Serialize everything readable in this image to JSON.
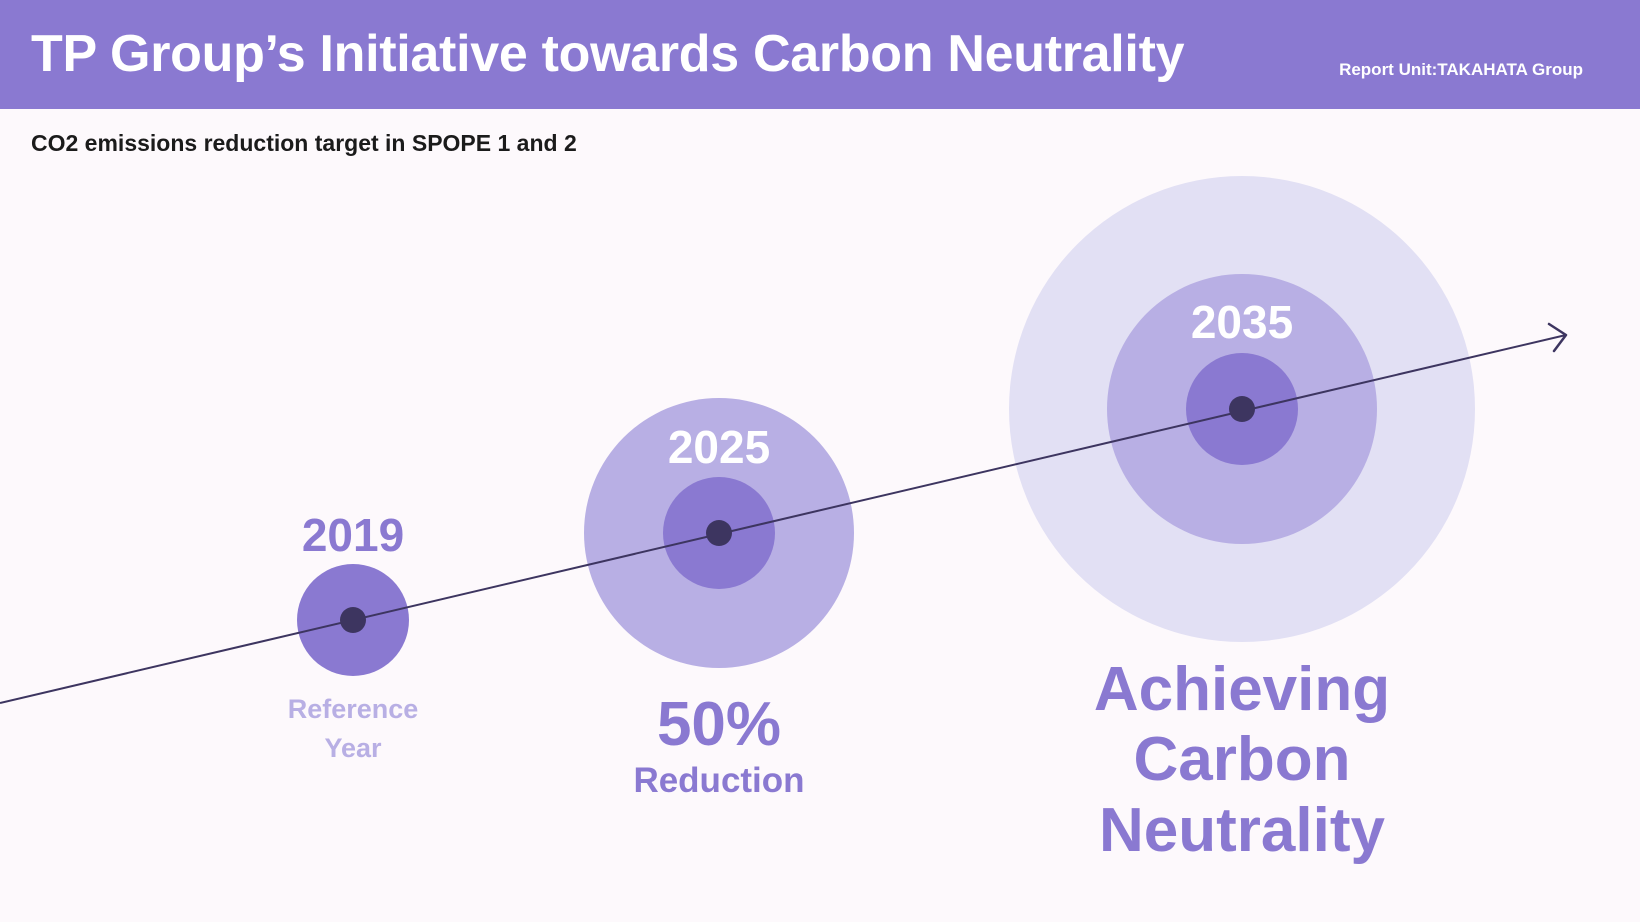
{
  "header": {
    "title": "TP Group’s Initiative towards Carbon Neutrality",
    "report_unit": "Report Unit:TAKAHATA Group"
  },
  "subtitle": "CO2 emissions reduction target in SPOPE 1 and 2",
  "milestones": [
    {
      "year": "2019",
      "caption_lines": [
        "Reference",
        "Year"
      ]
    },
    {
      "year": "2025",
      "caption_big": "50%",
      "caption_lines": [
        "Reduction"
      ]
    },
    {
      "year": "2035",
      "caption_lines": [
        "Achieving",
        "Carbon",
        "Neutrality"
      ]
    }
  ],
  "colors": {
    "header_bg": "#8a79d1",
    "page_bg": "#fdf9fc",
    "circle_dark": "#8a79d1",
    "circle_mid": "#b8afe4",
    "circle_light": "#e2e0f4",
    "dot": "#3d3560",
    "line": "#3d3560",
    "caption_light": "#b8afe4"
  },
  "icons": {
    "timeline_end": "arrow-head-icon"
  }
}
